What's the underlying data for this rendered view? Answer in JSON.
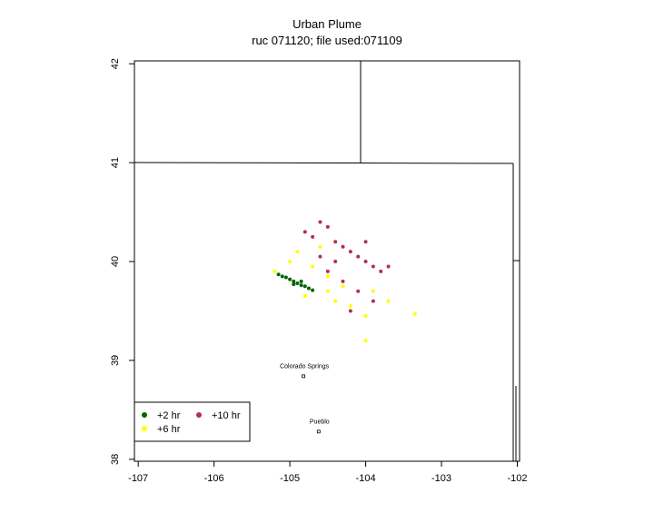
{
  "chart_data": {
    "type": "scatter",
    "title": "Urban Plume",
    "subtitle": "ruc 071120; file used:071109",
    "xlim": [
      -107.05,
      -101.97
    ],
    "ylim": [
      37.98,
      42.03
    ],
    "xticks": [
      -107,
      -106,
      -105,
      -104,
      -103,
      -102
    ],
    "yticks": [
      38,
      39,
      40,
      41,
      42
    ],
    "legend": "bottom-left",
    "series": [
      {
        "name": "+2 hr",
        "color": "#006400",
        "x": [
          -105.15,
          -105.1,
          -105.05,
          -105.0,
          -104.95,
          -104.9,
          -104.85,
          -104.8,
          -104.75,
          -104.7,
          -104.95,
          -104.85
        ],
        "y": [
          39.87,
          39.85,
          39.84,
          39.82,
          39.8,
          39.78,
          39.76,
          39.75,
          39.73,
          39.71,
          39.77,
          39.8
        ]
      },
      {
        "name": "+6 hr",
        "color": "#ffff00",
        "x": [
          -105.2,
          -105.0,
          -104.9,
          -104.8,
          -104.7,
          -104.6,
          -104.5,
          -104.4,
          -104.3,
          -104.2,
          -104.0,
          -103.9,
          -103.7,
          -103.35,
          -104.0,
          -104.5
        ],
        "y": [
          39.9,
          40.0,
          40.1,
          39.65,
          39.95,
          40.15,
          39.7,
          39.6,
          39.75,
          39.55,
          39.45,
          39.7,
          39.6,
          39.47,
          39.2,
          39.85
        ]
      },
      {
        "name": "+10 hr",
        "color": "#b03050",
        "x": [
          -104.8,
          -104.7,
          -104.6,
          -104.5,
          -104.4,
          -104.3,
          -104.2,
          -104.1,
          -104.0,
          -103.9,
          -103.8,
          -103.7,
          -104.5,
          -104.3,
          -104.1,
          -103.9,
          -104.6,
          -104.2,
          -104.0,
          -104.4
        ],
        "y": [
          40.3,
          40.25,
          40.4,
          40.35,
          40.2,
          40.15,
          40.1,
          40.05,
          40.0,
          39.95,
          39.9,
          39.95,
          39.9,
          39.8,
          39.7,
          39.6,
          40.05,
          39.5,
          40.2,
          40.0
        ]
      }
    ],
    "annotations": [
      {
        "text": "Colorado Springs",
        "x": -104.82,
        "y": 38.84
      },
      {
        "text": "Pueblo",
        "x": -104.62,
        "y": 38.28
      }
    ]
  }
}
